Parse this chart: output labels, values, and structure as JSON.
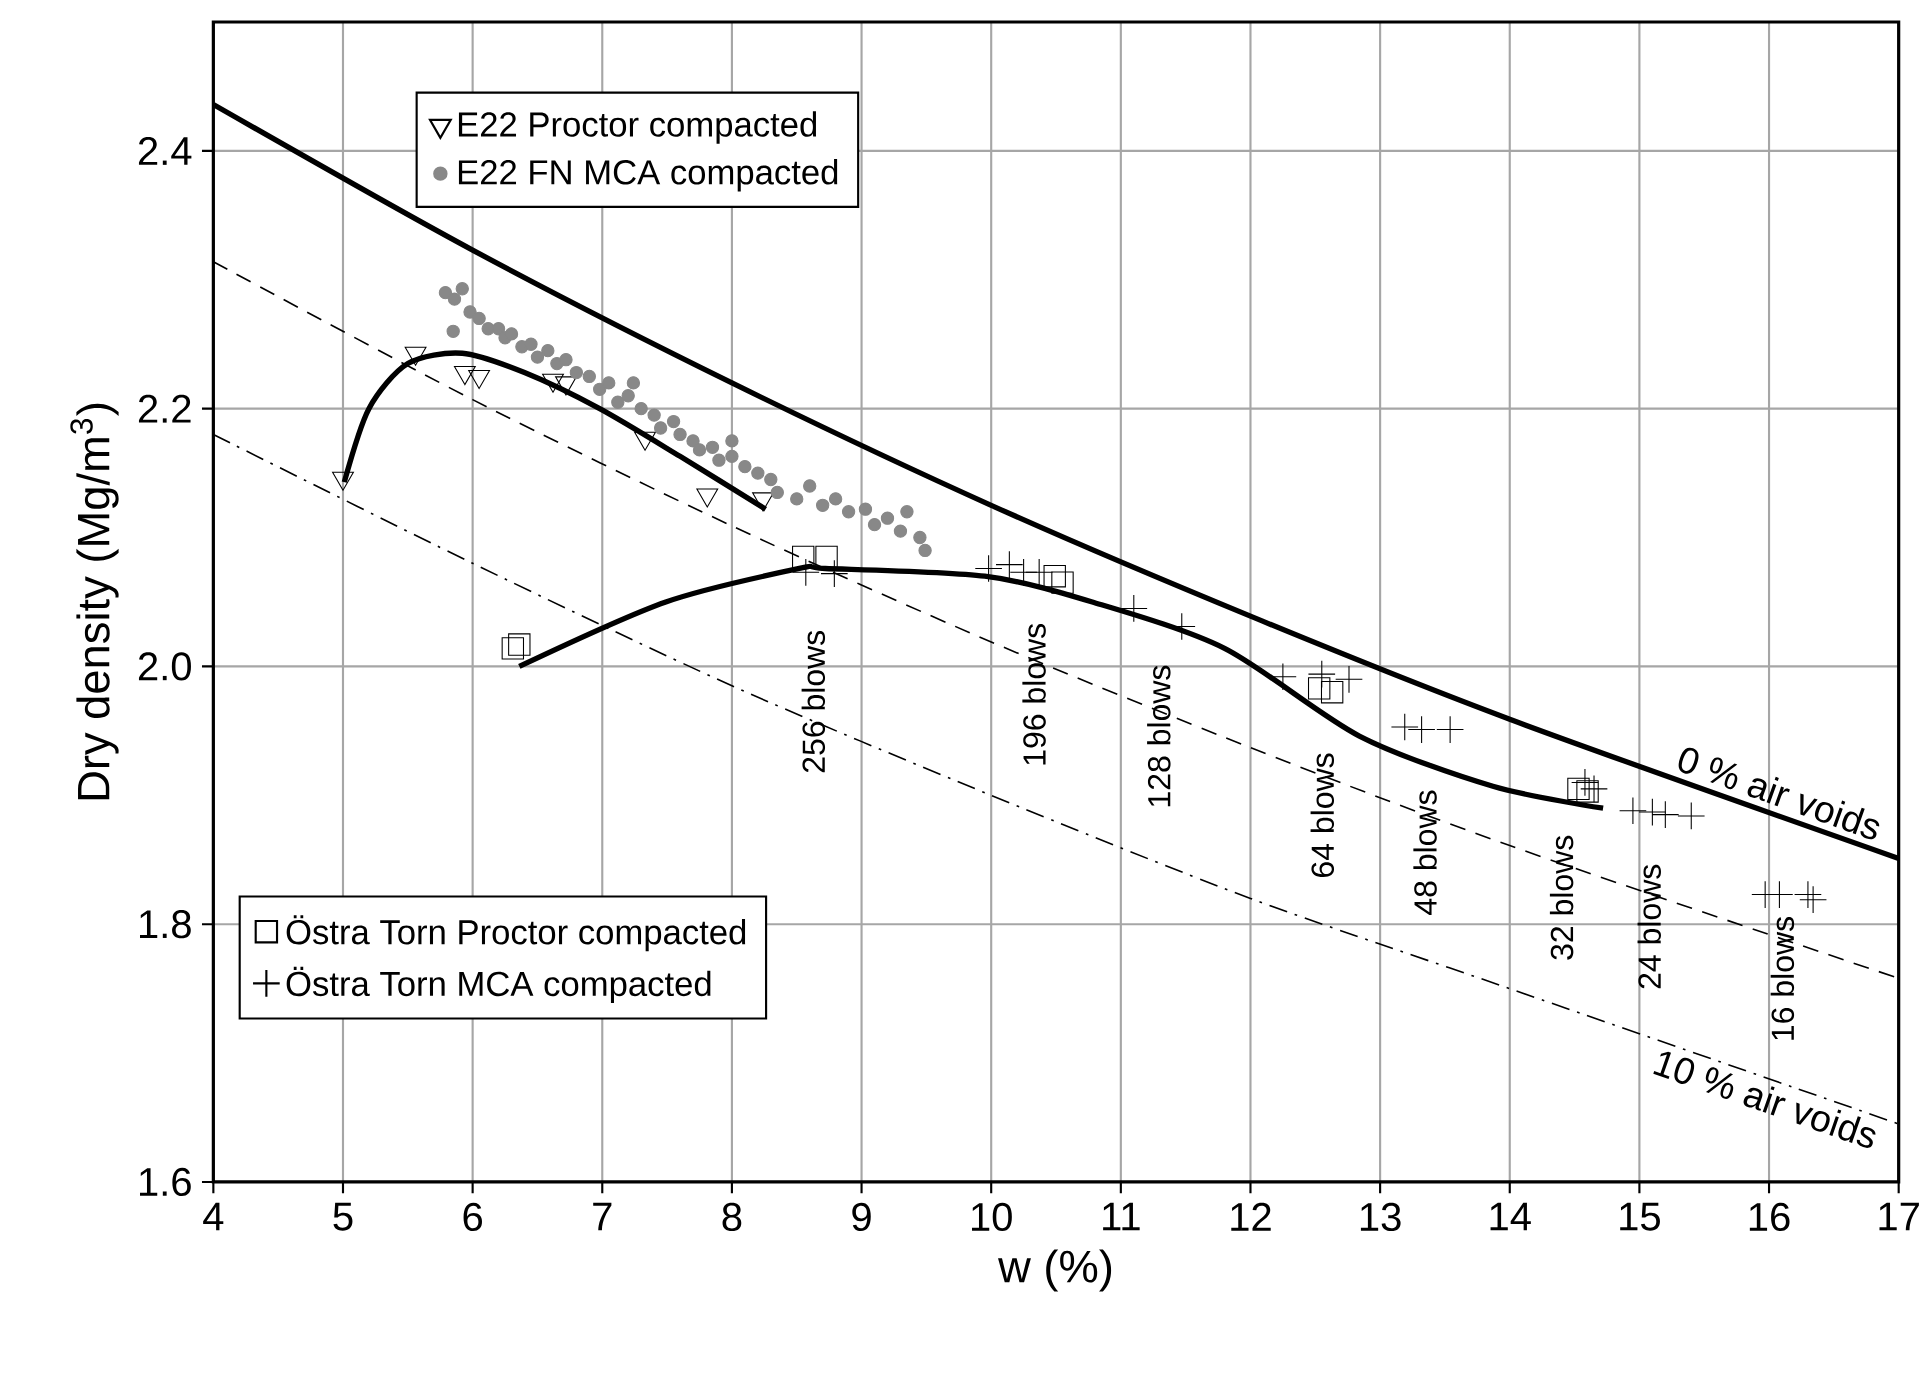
{
  "chart_data": {
    "type": "scatter",
    "xlabel": "w (%)",
    "ylabel": "Dry density (Mg/m$^{3}$)",
    "xlim": [
      4,
      17
    ],
    "ylim": [
      1.6,
      2.5
    ],
    "xticks": [
      4,
      5,
      6,
      7,
      8,
      9,
      10,
      11,
      12,
      13,
      14,
      15,
      16,
      17
    ],
    "yticks": [
      1.6,
      1.8,
      {
        "value": 2,
        "label": "2.0"
      },
      2.2,
      2.4
    ],
    "grid": true,
    "legend": "top left",
    "series": [
      {
        "name": "E22 Proctor  compacted",
        "marker": "triangle",
        "color": "#000000",
        "x": [
          5.0,
          5.56,
          5.94,
          6.05,
          6.62,
          6.72,
          7.33,
          7.81,
          8.24
        ],
        "values": [
          2.146,
          2.243,
          2.228,
          2.225,
          2.222,
          2.22,
          2.177,
          2.133,
          2.13
        ]
      },
      {
        "name": "E22 FN MCA compacted",
        "marker": "circle",
        "color": "#888888",
        "x": [
          5.79,
          5.86,
          5.92,
          5.85,
          5.98,
          6.05,
          6.12,
          6.2,
          6.25,
          6.3,
          6.38,
          6.45,
          6.5,
          6.58,
          6.65,
          6.72,
          6.8,
          6.9,
          6.98,
          7.05,
          7.12,
          7.2,
          7.24,
          7.3,
          7.4,
          7.45,
          7.55,
          7.6,
          7.7,
          7.75,
          7.85,
          7.9,
          8.0,
          8.0,
          8.1,
          8.2,
          8.3,
          8.35,
          8.5,
          8.6,
          8.7,
          8.8,
          8.9,
          9.03,
          9.1,
          9.2,
          9.3,
          9.35,
          9.45,
          9.49
        ],
        "values": [
          2.29,
          2.285,
          2.293,
          2.26,
          2.275,
          2.27,
          2.262,
          2.262,
          2.255,
          2.258,
          2.248,
          2.25,
          2.24,
          2.245,
          2.235,
          2.238,
          2.228,
          2.225,
          2.215,
          2.22,
          2.205,
          2.21,
          2.22,
          2.2,
          2.195,
          2.185,
          2.19,
          2.18,
          2.175,
          2.168,
          2.17,
          2.16,
          2.163,
          2.175,
          2.155,
          2.15,
          2.145,
          2.135,
          2.13,
          2.14,
          2.125,
          2.13,
          2.12,
          2.122,
          2.11,
          2.115,
          2.105,
          2.12,
          2.1,
          2.09
        ]
      },
      {
        "name": "Östra Torn Proctor compacted",
        "marker": "square",
        "color": "#000000",
        "x": [
          6.31,
          6.36,
          8.55,
          8.73,
          10.49,
          10.55,
          12.53,
          12.63,
          14.53,
          14.6
        ],
        "values": [
          2.014,
          2.017,
          2.085,
          2.085,
          2.07,
          2.065,
          1.983,
          1.98,
          1.905,
          1.903
        ]
      },
      {
        "name": "Östra Torn MCA compacted",
        "marker": "cross",
        "color": "#000000",
        "x": [
          8.57,
          8.79,
          9.98,
          10.14,
          10.25,
          10.37,
          11.1,
          11.47,
          12.25,
          12.55,
          12.76,
          13.19,
          13.32,
          13.54,
          14.58,
          14.65,
          14.95,
          15.1,
          15.2,
          15.4,
          15.97,
          16.08,
          16.3,
          16.34
        ],
        "values": [
          2.073,
          2.072,
          2.076,
          2.079,
          2.073,
          2.073,
          2.045,
          2.031,
          1.992,
          1.994,
          1.99,
          1.953,
          1.951,
          1.951,
          1.91,
          1.905,
          1.888,
          1.887,
          1.885,
          1.884,
          1.823,
          1.823,
          1.823,
          1.819
        ]
      },
      {
        "type": "line",
        "line_style": "solid",
        "color": "#000000",
        "x": [
          5.01,
          5.2,
          5.5,
          5.92,
          6.4,
          6.98,
          7.6,
          8.26
        ],
        "values": [
          2.143,
          2.2,
          2.235,
          2.243,
          2.228,
          2.2,
          2.163,
          2.122
        ]
      },
      {
        "type": "line",
        "line_style": "solid",
        "color": "#000000",
        "x": [
          6.36,
          7.49,
          8.52,
          8.72,
          9.95,
          10.78,
          11.8,
          12.84,
          13.87,
          14.72
        ],
        "values": [
          2.0,
          2.05,
          2.076,
          2.076,
          2.07,
          2.05,
          2.014,
          1.946,
          1.907,
          1.89
        ]
      },
      {
        "name": "0 % air voids",
        "type": "line",
        "line_style": "solid",
        "color": "#000000",
        "x": [
          4,
          6,
          8,
          10,
          12,
          14,
          17
        ],
        "values": [
          2.436,
          2.323,
          2.22,
          2.125,
          2.039,
          1.959,
          1.851
        ]
      },
      {
        "type": "line",
        "line_style": "dashed",
        "color": "#000000",
        "x": [
          4,
          6,
          8,
          10,
          12,
          14,
          17
        ],
        "values": [
          2.314,
          2.207,
          2.109,
          2.019,
          1.937,
          1.861,
          1.758
        ]
      },
      {
        "name": "10 % air voids",
        "type": "line",
        "line_style": "dashdot",
        "color": "#000000",
        "x": [
          4,
          6,
          8,
          10,
          12,
          14,
          17
        ],
        "values": [
          2.18,
          2.08,
          1.985,
          1.9,
          1.82,
          1.75,
          1.645
        ]
      }
    ],
    "annotations": [
      "256 blows",
      "196 blows",
      "128 blows",
      "64 blows",
      "48 blows",
      "32 blows",
      "24 blows",
      "16 blows"
    ]
  }
}
